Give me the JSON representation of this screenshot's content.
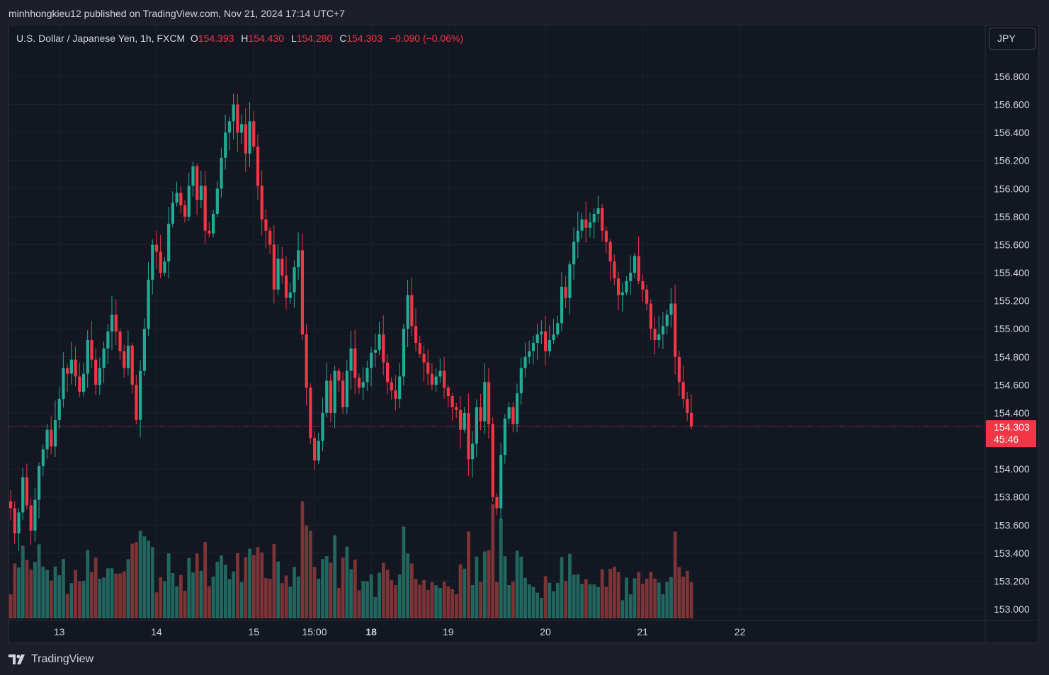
{
  "header": {
    "publisher_line": "minhhongkieu12 published on TradingView.com, Nov 21, 2024 17:14 UTC+7"
  },
  "legend": {
    "symbol": "U.S. Dollar / Japanese Yen, 1h, FXCM",
    "open_label": "O",
    "open": "154.393",
    "high_label": "H",
    "high": "154.430",
    "low_label": "L",
    "low": "154.280",
    "close_label": "C",
    "close": "154.303",
    "change": "−0.090 (−0.06%)"
  },
  "currency_button": {
    "label": "JPY"
  },
  "price_badge": {
    "price": "154.303",
    "countdown": "45:46"
  },
  "footer": {
    "brand": "TradingView",
    "logo_icon": "tradingview-logo-icon"
  },
  "colors": {
    "up": "#22ab94",
    "down": "#f23645",
    "up_vol": "#22675d",
    "down_vol": "#7d3436",
    "background": "#131722",
    "grid": "#1e222d"
  },
  "chart_data": {
    "type": "candlestick",
    "timeframe": "1h",
    "y_range": [
      152.93,
      157.0
    ],
    "y_ticks": [
      "156.800",
      "156.600",
      "156.400",
      "156.200",
      "156.000",
      "155.800",
      "155.600",
      "155.400",
      "155.200",
      "155.000",
      "154.800",
      "154.600",
      "154.400",
      "154.000",
      "153.800",
      "153.600",
      "153.400",
      "153.200",
      "153.000"
    ],
    "x_ticks": [
      {
        "label": "13",
        "index": 12,
        "bold": false
      },
      {
        "label": "14",
        "index": 36,
        "bold": false
      },
      {
        "label": "15",
        "index": 60,
        "bold": false
      },
      {
        "label": "15:00",
        "index": 75,
        "bold": false
      },
      {
        "label": "18",
        "index": 89,
        "bold": true
      },
      {
        "label": "19",
        "index": 108,
        "bold": false
      },
      {
        "label": "20",
        "index": 132,
        "bold": false
      },
      {
        "label": "21",
        "index": 156,
        "bold": false
      },
      {
        "label": "22",
        "index": 180,
        "bold": false
      }
    ],
    "last_price": 154.303,
    "closes": [
      153.72,
      153.54,
      153.69,
      153.94,
      153.74,
      153.56,
      153.78,
      154.02,
      154.14,
      154.28,
      154.16,
      154.35,
      154.5,
      154.72,
      154.68,
      154.78,
      154.66,
      154.55,
      154.68,
      154.92,
      154.78,
      154.6,
      154.72,
      154.86,
      154.98,
      155.1,
      154.98,
      154.84,
      154.72,
      154.88,
      154.6,
      154.35,
      154.7,
      155.0,
      155.35,
      155.6,
      155.55,
      155.4,
      155.48,
      155.75,
      155.9,
      155.97,
      155.88,
      155.8,
      156.02,
      156.16,
      155.92,
      156.02,
      155.7,
      155.68,
      155.82,
      156.0,
      156.22,
      156.4,
      156.48,
      156.6,
      156.4,
      156.46,
      156.25,
      156.48,
      156.3,
      156.02,
      155.78,
      155.7,
      155.6,
      155.28,
      155.5,
      155.38,
      155.22,
      155.26,
      155.44,
      155.56,
      154.96,
      154.58,
      154.22,
      154.06,
      154.2,
      154.4,
      154.63,
      154.4,
      154.7,
      154.63,
      154.44,
      154.7,
      154.86,
      154.65,
      154.58,
      154.62,
      154.72,
      154.83,
      154.85,
      154.96,
      154.76,
      154.62,
      154.56,
      154.5,
      154.66,
      155.0,
      155.24,
      155.02,
      154.9,
      154.82,
      154.76,
      154.68,
      154.6,
      154.66,
      154.7,
      154.58,
      154.52,
      154.44,
      154.42,
      154.28,
      154.4,
      154.07,
      154.18,
      154.44,
      154.34,
      154.62,
      154.32,
      153.8,
      153.72,
      154.1,
      154.36,
      154.44,
      154.32,
      154.54,
      154.72,
      154.8,
      154.84,
      154.9,
      154.96,
      154.98,
      154.84,
      154.92,
      154.96,
      155.04,
      155.3,
      155.22,
      155.46,
      155.62,
      155.7,
      155.78,
      155.72,
      155.76,
      155.82,
      155.86,
      155.7,
      155.62,
      155.48,
      155.36,
      155.24,
      155.26,
      155.34,
      155.4,
      155.52,
      155.34,
      155.28,
      155.18,
      155.0,
      154.92,
      154.96,
      155.02,
      155.1,
      155.18,
      154.8,
      154.62,
      154.5,
      154.4,
      154.303
    ]
  }
}
